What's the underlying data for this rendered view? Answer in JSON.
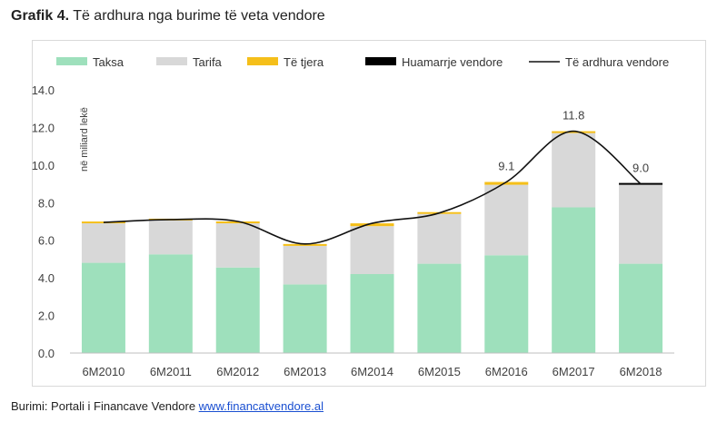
{
  "header": {
    "label": "Grafik 4.",
    "title": "Të ardhura nga burime të veta vendore"
  },
  "source": {
    "label": "Burimi: Portali i Financave Vendore",
    "link": "www.financatvendore.al"
  },
  "chart_data": {
    "type": "bar",
    "stacked": true,
    "categories": [
      "6M2010",
      "6M2011",
      "6M2012",
      "6M2013",
      "6M2014",
      "6M2015",
      "6M2016",
      "6M2017",
      "6M2018"
    ],
    "series": [
      {
        "name": "Taksa",
        "color": "#9ee0bc",
        "values": [
          4.8,
          5.25,
          4.55,
          3.65,
          4.2,
          4.75,
          5.2,
          7.75,
          4.75
        ]
      },
      {
        "name": "Tarifa",
        "color": "#d8d8d8",
        "values": [
          2.1,
          1.8,
          2.35,
          2.05,
          2.55,
          2.65,
          3.75,
          3.95,
          4.2
        ]
      },
      {
        "name": "Të tjera",
        "color": "#f5bf1a",
        "values": [
          0.05,
          0.05,
          0.1,
          0.1,
          0.15,
          0.08,
          0.15,
          0.1,
          0.0
        ]
      },
      {
        "name": "Huamarrje vendore",
        "color": "#000000",
        "values": [
          0,
          0,
          0,
          0,
          0,
          0,
          0,
          0,
          0.05
        ]
      }
    ],
    "line": {
      "name": "Të ardhura vendore",
      "color": "#111111",
      "values": [
        6.95,
        7.1,
        7.0,
        5.8,
        6.9,
        7.45,
        9.1,
        11.8,
        9.0
      ]
    },
    "data_labels": [
      {
        "index": 6,
        "text": "9.1"
      },
      {
        "index": 7,
        "text": "11.8"
      },
      {
        "index": 8,
        "text": "9.0"
      }
    ],
    "ylim": [
      0,
      14
    ],
    "yticks": [
      "0.0",
      "2.0",
      "4.0",
      "6.0",
      "8.0",
      "10.0",
      "12.0",
      "14.0"
    ],
    "ylabel": "në miliard lekë",
    "grid": false,
    "legend": "top"
  }
}
